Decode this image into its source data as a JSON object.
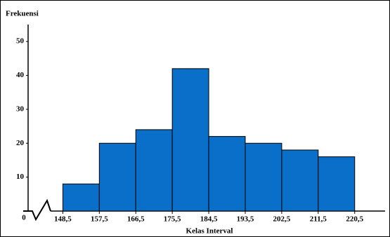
{
  "chart_data": {
    "type": "histogram",
    "y_label": "Frekuensi",
    "x_label": "Kelas Interval",
    "bins": [
      148.5,
      157.5,
      166.5,
      175.5,
      184.5,
      193.5,
      202.5,
      211.5,
      220.5
    ],
    "values": [
      8,
      20,
      24,
      42,
      22,
      20,
      18,
      16
    ],
    "color": "#0a6fc8",
    "xlim": [
      146,
      228
    ],
    "xticks": [
      {
        "value": 148.5,
        "label": "148,5"
      },
      {
        "value": 157.5,
        "label": "157,5"
      },
      {
        "value": 166.5,
        "label": "166,5"
      },
      {
        "value": 175.5,
        "label": "175,5"
      },
      {
        "value": 184.5,
        "label": "184,5"
      },
      {
        "value": 193.5,
        "label": "193,5"
      },
      {
        "value": 202.5,
        "label": "202,5"
      },
      {
        "value": 211.5,
        "label": "211,5"
      },
      {
        "value": 220.5,
        "label": "220,5"
      }
    ],
    "ylim": [
      0,
      55
    ],
    "yticks": [
      0,
      10,
      20,
      30,
      40,
      50
    ]
  }
}
